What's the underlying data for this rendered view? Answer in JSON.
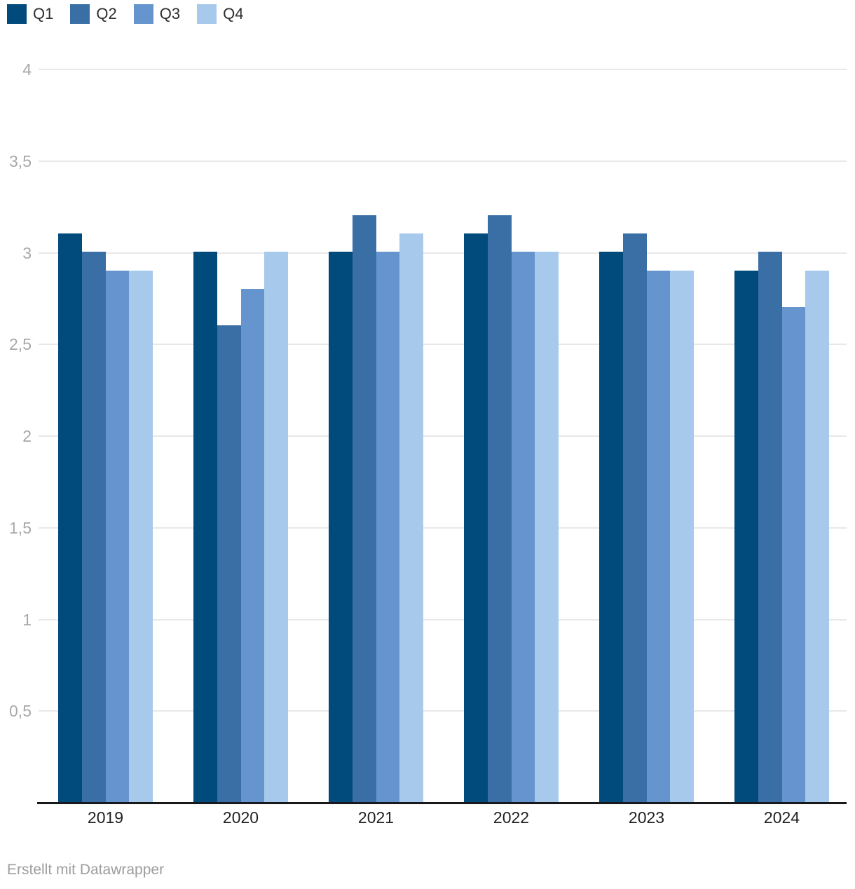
{
  "chart_data": {
    "type": "bar",
    "grouped": true,
    "title": "",
    "xlabel": "",
    "ylabel": "",
    "categories": [
      "2019",
      "2020",
      "2021",
      "2022",
      "2023",
      "2024"
    ],
    "series": [
      {
        "name": "Q1",
        "color": "#004a7c",
        "values": [
          3.1,
          3.0,
          3.0,
          3.1,
          3.0,
          2.9
        ]
      },
      {
        "name": "Q2",
        "color": "#3a6fa5",
        "values": [
          3.0,
          2.6,
          3.2,
          3.2,
          3.1,
          3.0
        ]
      },
      {
        "name": "Q3",
        "color": "#6694ce",
        "values": [
          2.9,
          2.8,
          3.0,
          3.0,
          2.9,
          2.7
        ]
      },
      {
        "name": "Q4",
        "color": "#a6c9ec",
        "values": [
          2.9,
          3.0,
          3.1,
          3.0,
          2.9,
          2.9
        ]
      }
    ],
    "ylim": [
      0,
      4
    ],
    "y_ticks": [
      {
        "value": 0.5,
        "label": "0,5"
      },
      {
        "value": 1,
        "label": "1"
      },
      {
        "value": 1.5,
        "label": "1,5"
      },
      {
        "value": 2,
        "label": "2"
      },
      {
        "value": 2.5,
        "label": "2,5"
      },
      {
        "value": 3,
        "label": "3"
      },
      {
        "value": 3.5,
        "label": "3,5"
      },
      {
        "value": 4,
        "label": "4"
      }
    ],
    "grid": "horizontal",
    "legend_position": "top-left",
    "number_format": "german-decimal-comma"
  },
  "footer": {
    "credit": "Erstellt mit Datawrapper"
  },
  "style": {
    "background": "#ffffff",
    "gridline_color": "#e8e8e8",
    "axis_line_color": "#18191b",
    "tick_label_color": "#a8a8a8",
    "category_label_color": "#1f1f1f",
    "legend_label_color": "#2e2e2e",
    "credit_color": "#9e9e9e"
  }
}
